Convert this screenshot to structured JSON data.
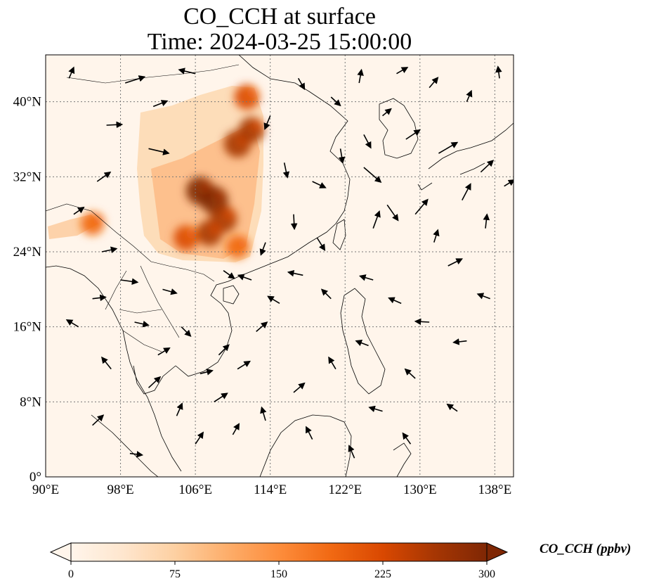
{
  "title": {
    "line1": "CO_CCH at surface",
    "line2": "Time: 2024-03-25 15:00:00"
  },
  "map": {
    "lon_range": [
      90,
      140
    ],
    "lat_range": [
      0,
      45
    ],
    "x_ticks": [
      {
        "lon": 90,
        "label": "90°E"
      },
      {
        "lon": 98,
        "label": "98°E"
      },
      {
        "lon": 106,
        "label": "106°E"
      },
      {
        "lon": 114,
        "label": "114°E"
      },
      {
        "lon": 122,
        "label": "122°E"
      },
      {
        "lon": 130,
        "label": "130°E"
      },
      {
        "lon": 138,
        "label": "138°E"
      }
    ],
    "y_ticks": [
      {
        "lat": 0,
        "label": "0°"
      },
      {
        "lat": 8,
        "label": "8°N"
      },
      {
        "lat": 16,
        "label": "16°N"
      },
      {
        "lat": 24,
        "label": "24°N"
      },
      {
        "lat": 32,
        "label": "32°N"
      },
      {
        "lat": 40,
        "label": "40°N"
      }
    ],
    "gridlines": true,
    "field": "CO_CCH",
    "level": "surface",
    "units": "ppbv",
    "background_color": "#fff5eb",
    "hotspots": [
      {
        "lon": 108.0,
        "lat": 29.5,
        "value": 300
      },
      {
        "lon": 106.5,
        "lat": 30.5,
        "value": 300
      },
      {
        "lon": 109.0,
        "lat": 27.5,
        "value": 280
      },
      {
        "lon": 107.5,
        "lat": 26.0,
        "value": 250
      },
      {
        "lon": 110.5,
        "lat": 35.5,
        "value": 280
      },
      {
        "lon": 112.0,
        "lat": 37.0,
        "value": 250
      },
      {
        "lon": 111.5,
        "lat": 40.5,
        "value": 240
      },
      {
        "lon": 105.0,
        "lat": 25.5,
        "value": 230
      },
      {
        "lon": 95.0,
        "lat": 27.0,
        "value": 200
      },
      {
        "lon": 110.5,
        "lat": 24.5,
        "value": 200
      }
    ],
    "wind_vectors": [
      {
        "lon": 92.5,
        "lat": 42.5,
        "u": 0.6,
        "v": 1.4
      },
      {
        "lon": 96.5,
        "lat": 37.5,
        "u": 2.0,
        "v": 0.1
      },
      {
        "lon": 98.5,
        "lat": 42.0,
        "u": 2.5,
        "v": 0.8
      },
      {
        "lon": 101.0,
        "lat": 35.0,
        "u": 2.6,
        "v": -0.6
      },
      {
        "lon": 95.5,
        "lat": 31.5,
        "u": 1.7,
        "v": 1.2
      },
      {
        "lon": 93.0,
        "lat": 28.0,
        "u": 1.3,
        "v": 0.9
      },
      {
        "lon": 96.0,
        "lat": 24.0,
        "u": 1.9,
        "v": 0.4
      },
      {
        "lon": 98.0,
        "lat": 21.0,
        "u": 2.2,
        "v": -0.3
      },
      {
        "lon": 102.5,
        "lat": 20.0,
        "u": 1.8,
        "v": -0.5
      },
      {
        "lon": 95.0,
        "lat": 19.0,
        "u": 1.7,
        "v": 0.2
      },
      {
        "lon": 99.5,
        "lat": 16.5,
        "u": 1.8,
        "v": -0.4
      },
      {
        "lon": 93.5,
        "lat": 16.0,
        "u": -1.5,
        "v": 0.9
      },
      {
        "lon": 97.0,
        "lat": 11.5,
        "u": -1.2,
        "v": 1.5
      },
      {
        "lon": 101.0,
        "lat": 9.5,
        "u": 1.5,
        "v": 1.4
      },
      {
        "lon": 104.0,
        "lat": 6.5,
        "u": 0.7,
        "v": 1.6
      },
      {
        "lon": 95.0,
        "lat": 5.5,
        "u": 1.4,
        "v": 1.3
      },
      {
        "lon": 99.0,
        "lat": 2.5,
        "u": 1.6,
        "v": -0.2
      },
      {
        "lon": 106.0,
        "lat": 3.5,
        "u": 1.0,
        "v": 1.5
      },
      {
        "lon": 108.0,
        "lat": 8.0,
        "u": 1.7,
        "v": 1.1
      },
      {
        "lon": 110.5,
        "lat": 11.5,
        "u": 1.6,
        "v": 1.0
      },
      {
        "lon": 112.5,
        "lat": 15.5,
        "u": 1.4,
        "v": 1.2
      },
      {
        "lon": 108.5,
        "lat": 13.0,
        "u": 1.3,
        "v": 1.3
      },
      {
        "lon": 113.5,
        "lat": 6.0,
        "u": -0.5,
        "v": 1.7
      },
      {
        "lon": 116.5,
        "lat": 9.0,
        "u": 1.4,
        "v": 1.2
      },
      {
        "lon": 118.5,
        "lat": 4.0,
        "u": -0.8,
        "v": 1.6
      },
      {
        "lon": 121.0,
        "lat": 11.5,
        "u": -0.9,
        "v": 1.5
      },
      {
        "lon": 124.5,
        "lat": 14.0,
        "u": -1.6,
        "v": 0.6
      },
      {
        "lon": 126.0,
        "lat": 7.0,
        "u": -1.7,
        "v": 0.5
      },
      {
        "lon": 129.5,
        "lat": 10.5,
        "u": -1.3,
        "v": 1.2
      },
      {
        "lon": 131.0,
        "lat": 16.5,
        "u": -1.8,
        "v": 0.1
      },
      {
        "lon": 135.0,
        "lat": 14.5,
        "u": -1.7,
        "v": -0.2
      },
      {
        "lon": 128.0,
        "lat": 18.5,
        "u": -1.6,
        "v": 0.7
      },
      {
        "lon": 125.0,
        "lat": 21.0,
        "u": -1.7,
        "v": 0.5
      },
      {
        "lon": 120.5,
        "lat": 19.0,
        "u": -1.2,
        "v": 1.2
      },
      {
        "lon": 117.5,
        "lat": 21.5,
        "u": -1.9,
        "v": 0.4
      },
      {
        "lon": 115.0,
        "lat": 18.5,
        "u": -1.5,
        "v": 0.9
      },
      {
        "lon": 112.0,
        "lat": 21.0,
        "u": -1.7,
        "v": 0.6
      },
      {
        "lon": 119.0,
        "lat": 25.5,
        "u": 1.0,
        "v": -1.6
      },
      {
        "lon": 116.5,
        "lat": 28.0,
        "u": 0.1,
        "v": -1.9
      },
      {
        "lon": 118.5,
        "lat": 31.5,
        "u": 1.7,
        "v": -0.8
      },
      {
        "lon": 121.5,
        "lat": 35.0,
        "u": 0.3,
        "v": -1.8
      },
      {
        "lon": 124.0,
        "lat": 33.0,
        "u": 2.2,
        "v": -1.9
      },
      {
        "lon": 126.5,
        "lat": 29.0,
        "u": 1.4,
        "v": -2.0
      },
      {
        "lon": 125.0,
        "lat": 26.5,
        "u": 0.8,
        "v": 2.2
      },
      {
        "lon": 129.5,
        "lat": 28.0,
        "u": 1.6,
        "v": 1.9
      },
      {
        "lon": 131.5,
        "lat": 25.0,
        "u": 0.5,
        "v": 1.6
      },
      {
        "lon": 133.0,
        "lat": 22.5,
        "u": 1.8,
        "v": 0.9
      },
      {
        "lon": 134.5,
        "lat": 29.5,
        "u": 1.1,
        "v": 2.1
      },
      {
        "lon": 137.0,
        "lat": 26.5,
        "u": 0.2,
        "v": 1.8
      },
      {
        "lon": 136.5,
        "lat": 32.5,
        "u": 1.6,
        "v": 1.5
      },
      {
        "lon": 139.0,
        "lat": 31.0,
        "u": 1.3,
        "v": 0.8
      },
      {
        "lon": 132.0,
        "lat": 34.5,
        "u": 2.4,
        "v": 1.4
      },
      {
        "lon": 128.5,
        "lat": 36.0,
        "u": 1.8,
        "v": 1.2
      },
      {
        "lon": 126.0,
        "lat": 38.5,
        "u": 1.1,
        "v": 0.9
      },
      {
        "lon": 124.0,
        "lat": 36.5,
        "u": 0.9,
        "v": -1.7
      },
      {
        "lon": 120.5,
        "lat": 40.5,
        "u": 1.2,
        "v": -1.1
      },
      {
        "lon": 123.5,
        "lat": 42.0,
        "u": 0.3,
        "v": 1.7
      },
      {
        "lon": 127.5,
        "lat": 43.0,
        "u": 1.4,
        "v": 0.8
      },
      {
        "lon": 131.0,
        "lat": 41.5,
        "u": 1.1,
        "v": 1.3
      },
      {
        "lon": 135.0,
        "lat": 40.0,
        "u": 0.6,
        "v": 1.4
      },
      {
        "lon": 138.5,
        "lat": 42.5,
        "u": -0.2,
        "v": 1.5
      },
      {
        "lon": 117.0,
        "lat": 42.5,
        "u": 0.8,
        "v": -1.4
      },
      {
        "lon": 114.0,
        "lat": 38.5,
        "u": -0.7,
        "v": -1.7
      },
      {
        "lon": 115.5,
        "lat": 33.5,
        "u": 0.4,
        "v": -1.9
      },
      {
        "lon": 113.5,
        "lat": 25.0,
        "u": -0.6,
        "v": -1.6
      },
      {
        "lon": 106.0,
        "lat": 43.0,
        "u": -2.1,
        "v": 0.5
      },
      {
        "lon": 101.5,
        "lat": 39.5,
        "u": 1.8,
        "v": 0.7
      },
      {
        "lon": 109.0,
        "lat": 22.0,
        "u": 1.4,
        "v": -1.0
      },
      {
        "lon": 104.5,
        "lat": 16.0,
        "u": 1.2,
        "v": -1.2
      },
      {
        "lon": 106.5,
        "lat": 11.0,
        "u": 1.6,
        "v": 0.4
      },
      {
        "lon": 102.0,
        "lat": 13.0,
        "u": 1.5,
        "v": 0.9
      },
      {
        "lon": 110.0,
        "lat": 4.5,
        "u": 0.8,
        "v": 1.4
      },
      {
        "lon": 123.0,
        "lat": 2.0,
        "u": -0.7,
        "v": 1.6
      },
      {
        "lon": 129.0,
        "lat": 3.5,
        "u": -1.0,
        "v": 1.4
      },
      {
        "lon": 134.0,
        "lat": 7.0,
        "u": -1.3,
        "v": 0.9
      },
      {
        "lon": 137.5,
        "lat": 19.0,
        "u": -1.6,
        "v": 0.6
      }
    ],
    "vector_color": "#000000"
  },
  "colorbar": {
    "vmin": 0,
    "vmax": 300,
    "extend": "both",
    "ticks": [
      {
        "value": 0,
        "label": "0"
      },
      {
        "value": 75,
        "label": "75"
      },
      {
        "value": 150,
        "label": "150"
      },
      {
        "value": 225,
        "label": "225"
      },
      {
        "value": 300,
        "label": "300"
      }
    ],
    "label": "CO_CCH (ppbv)",
    "colormap": [
      "#fff5eb",
      "#fee6ce",
      "#fdd0a2",
      "#fdae6b",
      "#fd8d3c",
      "#f16913",
      "#d94801",
      "#a63603",
      "#7f2704"
    ],
    "colormap_name": "OrRd-like"
  },
  "chart_data": {
    "type": "heatmap",
    "title": "CO_CCH at surface\nTime: 2024-03-25 15:00:00",
    "xlabel": "",
    "ylabel": "",
    "xlim": [
      90,
      140
    ],
    "ylim": [
      0,
      45
    ],
    "colorbar_range": [
      0,
      300
    ],
    "colorbar_label": "CO_CCH (ppbv)",
    "grid": true
  }
}
